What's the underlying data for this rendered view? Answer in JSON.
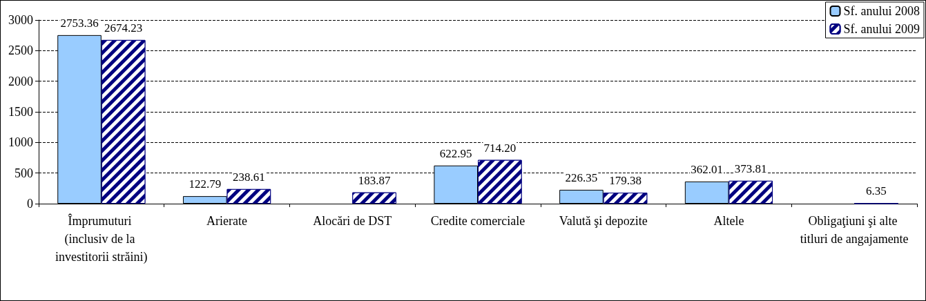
{
  "chart_data": {
    "type": "bar",
    "categories": [
      "Împrumuturi (inclusiv de la investitorii străini)",
      "Arierate",
      "Alocări de DST",
      "Credite comerciale",
      "Valută şi depozite",
      "Altele",
      "Obligaţiuni şi alte titluri de angajamente"
    ],
    "series": [
      {
        "name": "Sf. anului 2008",
        "color": "#99ccff",
        "values": [
          2753.36,
          122.79,
          null,
          622.95,
          226.35,
          362.01,
          null
        ],
        "value_labels": [
          "2753.36",
          "122.79",
          null,
          "622.95",
          "226.35",
          "362.01",
          null
        ]
      },
      {
        "name": "Sf. anului 2009",
        "color": "#000080",
        "values": [
          2674.23,
          238.61,
          183.87,
          714.2,
          179.38,
          373.81,
          6.35
        ],
        "value_labels": [
          "2674.23",
          "238.61",
          "183.87",
          "714.20",
          "179.38",
          "373.81",
          "6.35"
        ]
      }
    ],
    "ylim": [
      0,
      3000
    ],
    "yticks": [
      0,
      500,
      1000,
      1500,
      2000,
      2500,
      3000
    ],
    "grid": "y",
    "legend": "top right"
  }
}
